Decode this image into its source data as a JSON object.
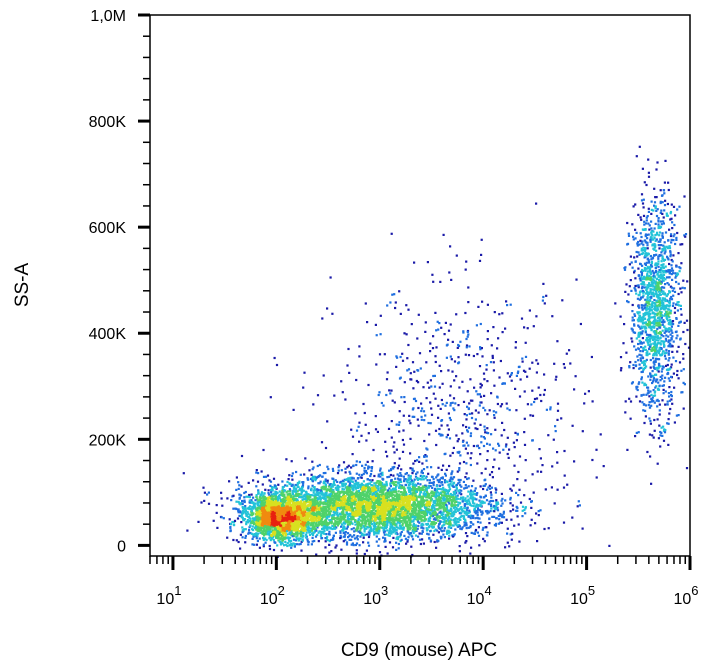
{
  "chart_data": {
    "type": "scatter",
    "title": "",
    "xlabel": "CD9 (mouse) APC",
    "ylabel": "SS-A",
    "x_scale": "log",
    "xlim": [
      6,
      1000000
    ],
    "ylim": [
      -20000,
      1000000
    ],
    "x_ticks": [
      {
        "value": 10,
        "base": "10",
        "exp": "1"
      },
      {
        "value": 100,
        "base": "10",
        "exp": "2"
      },
      {
        "value": 1000,
        "base": "10",
        "exp": "3"
      },
      {
        "value": 10000,
        "base": "10",
        "exp": "4"
      },
      {
        "value": 100000,
        "base": "10",
        "exp": "5"
      },
      {
        "value": 1000000,
        "base": "10",
        "exp": "6"
      }
    ],
    "y_ticks": [
      {
        "value": 0,
        "label": "0"
      },
      {
        "value": 200000,
        "label": "200K"
      },
      {
        "value": 400000,
        "label": "400K"
      },
      {
        "value": 600000,
        "label": "600K"
      },
      {
        "value": 800000,
        "label": "800K"
      },
      {
        "value": 1000000,
        "label": "1,0M"
      }
    ],
    "grid": false,
    "density_colormap": [
      "#1a1aa8",
      "#1f6fe0",
      "#22c3d8",
      "#4fd26a",
      "#d8e020",
      "#f08a10",
      "#e82010"
    ],
    "populations": [
      {
        "x_center": 110,
        "x_spread_decades": 0.18,
        "y_center": 55000,
        "y_spread": 22000,
        "relative_size": 0.22
      },
      {
        "x_center": 900,
        "x_spread_decades": 0.55,
        "y_center": 75000,
        "y_spread": 30000,
        "relative_size": 0.48
      },
      {
        "x_center": 450000,
        "x_spread_decades": 0.12,
        "y_center": 450000,
        "y_spread": 100000,
        "relative_size": 0.16
      },
      {
        "x_center": 6000,
        "x_spread_decades": 0.6,
        "y_center": 250000,
        "y_spread": 120000,
        "relative_size": 0.08
      }
    ]
  }
}
